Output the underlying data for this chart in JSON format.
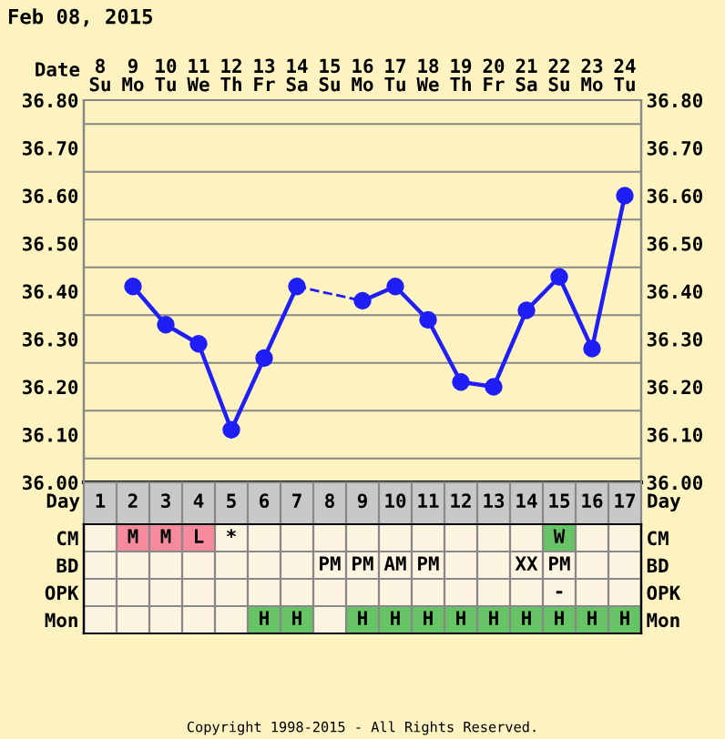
{
  "chart_data": [
    {
      "type": "line",
      "title": "Feb 08, 2015",
      "xlabel": "Date",
      "categories": [
        "8\nSu",
        "9\nMo",
        "10\nTu",
        "11\nWe",
        "12\nTh",
        "13\nFr",
        "14\nSa",
        "15\nSu",
        "16\nMo",
        "17\nTu",
        "18\nWe",
        "19\nTh",
        "20\nFr",
        "21\nSa",
        "22\nSu",
        "23\nMo",
        "24\nTu"
      ],
      "series": [
        {
          "color": "#1f1ff5",
          "values": [
            null,
            36.41,
            36.33,
            36.29,
            36.11,
            36.26,
            36.41,
            null,
            36.38,
            36.41,
            36.34,
            36.21,
            36.2,
            36.36,
            36.43,
            36.28,
            36.6
          ]
        }
      ],
      "ylim": [
        36.0,
        36.8
      ],
      "yticks": [
        {
          "value": 36.0,
          "label": "36.00"
        },
        {
          "value": 36.1,
          "label": "36.10"
        },
        {
          "value": 36.2,
          "label": "36.20"
        },
        {
          "value": 36.3,
          "label": "36.30"
        },
        {
          "value": 36.4,
          "label": "36.40"
        },
        {
          "value": 36.5,
          "label": "36.50"
        },
        {
          "value": 36.6,
          "label": "36.60"
        },
        {
          "value": 36.7,
          "label": "36.70"
        },
        {
          "value": 36.8,
          "label": "36.80"
        }
      ],
      "y2lim": [
        36.0,
        36.8
      ],
      "y2ticks": [
        {
          "value": 36.0,
          "label": "36.00"
        },
        {
          "value": 36.1,
          "label": "36.10"
        },
        {
          "value": 36.2,
          "label": "36.20"
        },
        {
          "value": 36.3,
          "label": "36.30"
        },
        {
          "value": 36.4,
          "label": "36.40"
        },
        {
          "value": 36.5,
          "label": "36.50"
        },
        {
          "value": 36.6,
          "label": "36.60"
        },
        {
          "value": 36.7,
          "label": "36.70"
        },
        {
          "value": 36.8,
          "label": "36.80"
        }
      ],
      "grid": true,
      "marker": "circle",
      "line_style": "solid",
      "annotations": [
        "Copyright 1998-2015 - All Rights Reserved."
      ]
    },
    {
      "type": "heatmap",
      "xlabel": "Day",
      "categories": [
        "1",
        "2",
        "3",
        "4",
        "5",
        "6",
        "7",
        "8",
        "9",
        "10",
        "11",
        "12",
        "13",
        "14",
        "15",
        "16",
        "17"
      ],
      "y_categories": [
        "CM",
        "BD",
        "OPK",
        "Mon"
      ],
      "y2_categories": [
        "CM",
        "BD",
        "OPK",
        "Mon"
      ],
      "cells": [
        [
          null,
          null,
          null,
          null,
          null,
          null,
          null,
          null,
          null,
          null,
          null,
          null,
          null,
          null,
          null,
          null,
          null
        ],
        [
          null,
          null,
          null,
          null,
          null,
          null,
          null,
          null,
          null,
          null,
          null,
          null,
          null,
          null,
          null,
          null,
          null
        ],
        [
          null,
          null,
          null,
          null,
          null,
          null,
          null,
          null,
          null,
          null,
          null,
          null,
          null,
          null,
          null,
          null,
          null
        ],
        [
          null,
          null,
          null,
          null,
          null,
          null,
          null,
          null,
          null,
          null,
          null,
          null,
          null,
          null,
          null,
          null,
          null
        ]
      ],
      "cell_labels": [
        [
          null,
          "M",
          "M",
          "L",
          "*",
          null,
          null,
          null,
          null,
          null,
          null,
          null,
          null,
          null,
          "W",
          null,
          null
        ],
        [
          null,
          null,
          null,
          null,
          null,
          null,
          null,
          "PM",
          "PM",
          "AM",
          "PM",
          null,
          null,
          "XX",
          "PM",
          null,
          null
        ],
        [
          null,
          null,
          null,
          null,
          null,
          null,
          null,
          null,
          null,
          null,
          null,
          null,
          null,
          null,
          "-",
          null,
          null
        ],
        [
          null,
          null,
          null,
          null,
          null,
          "H",
          "H",
          null,
          "H",
          "H",
          "H",
          "H",
          "H",
          "H",
          "H",
          "H",
          "H"
        ]
      ],
      "colors": [
        [
          null,
          "#f78a9c",
          "#f78a9c",
          "#f78a9c",
          null,
          null,
          null,
          null,
          null,
          null,
          null,
          null,
          null,
          null,
          "#66c466",
          null,
          null
        ],
        [
          null,
          null,
          null,
          null,
          null,
          null,
          null,
          null,
          null,
          null,
          null,
          null,
          null,
          null,
          null,
          null,
          null
        ],
        [
          null,
          null,
          null,
          null,
          null,
          null,
          null,
          null,
          null,
          null,
          null,
          null,
          null,
          null,
          null,
          null,
          null
        ],
        [
          null,
          null,
          null,
          null,
          null,
          "#66c466",
          "#66c466",
          null,
          "#66c466",
          "#66c466",
          "#66c466",
          "#66c466",
          "#66c466",
          "#66c466",
          "#66c466",
          "#66c466",
          "#66c466"
        ]
      ]
    }
  ]
}
